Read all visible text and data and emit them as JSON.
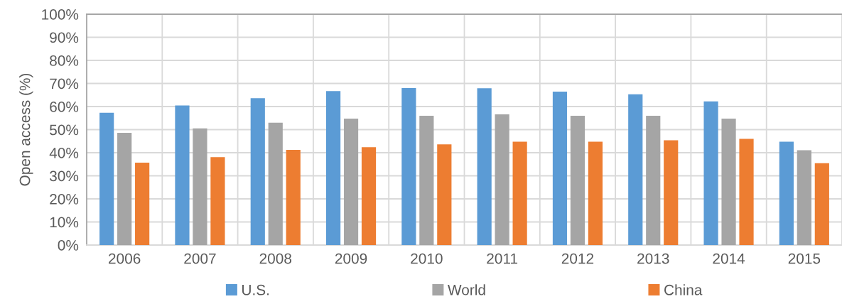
{
  "chart_data": {
    "type": "bar",
    "ylabel": "Open access (%)",
    "categories": [
      "2006",
      "2007",
      "2008",
      "2009",
      "2010",
      "2011",
      "2012",
      "2013",
      "2014",
      "2015"
    ],
    "series": [
      {
        "name": "U.S.",
        "color": "#5b9bd5",
        "values": [
          57.3,
          60.5,
          63.6,
          66.7,
          68.0,
          67.9,
          66.5,
          65.3,
          62.2,
          44.8
        ]
      },
      {
        "name": "World",
        "color": "#a5a5a5",
        "values": [
          48.6,
          50.5,
          53.0,
          54.8,
          56.0,
          56.6,
          56.0,
          56.0,
          54.8,
          41.1
        ]
      },
      {
        "name": "China",
        "color": "#ed7d31",
        "values": [
          35.7,
          38.1,
          41.2,
          42.4,
          43.6,
          44.8,
          44.8,
          45.4,
          46.0,
          35.5
        ]
      }
    ],
    "ylim": [
      0,
      100
    ],
    "yticks": [
      {
        "value": 0,
        "label": "0%"
      },
      {
        "value": 10,
        "label": "10%"
      },
      {
        "value": 20,
        "label": "20%"
      },
      {
        "value": 30,
        "label": "30%"
      },
      {
        "value": 40,
        "label": "40%"
      },
      {
        "value": 50,
        "label": "50%"
      },
      {
        "value": 60,
        "label": "60%"
      },
      {
        "value": 70,
        "label": "70%"
      },
      {
        "value": 80,
        "label": "80%"
      },
      {
        "value": 90,
        "label": "90%"
      },
      {
        "value": 100,
        "label": "100%"
      }
    ],
    "grid": true,
    "legend": "bottom"
  }
}
